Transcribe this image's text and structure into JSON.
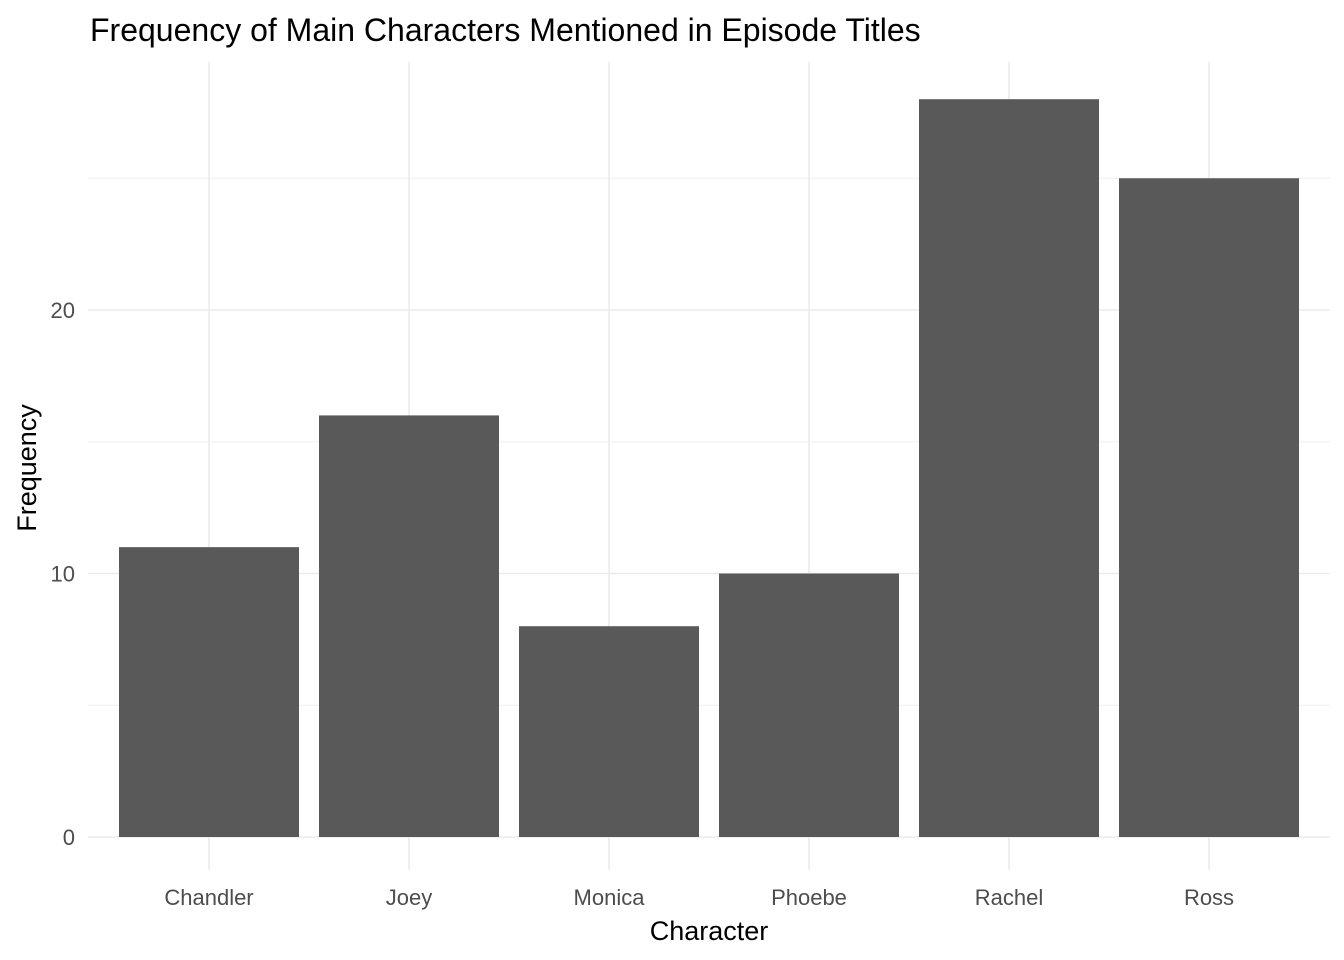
{
  "chart_data": {
    "type": "bar",
    "title": "Frequency of Main Characters Mentioned in Episode Titles",
    "xlabel": "Character",
    "ylabel": "Frequency",
    "categories": [
      "Chandler",
      "Joey",
      "Monica",
      "Phoebe",
      "Rachel",
      "Ross"
    ],
    "values": [
      11,
      16,
      8,
      10,
      28,
      25
    ],
    "ylim": [
      0,
      29.4
    ],
    "yticks": [
      0,
      10,
      20
    ],
    "ytick_labels": [
      "0",
      "10",
      "20"
    ],
    "grid": true,
    "legend": "none",
    "colors": {
      "bar": "#595959",
      "background": "#ffffff",
      "grid": "#ebebeb"
    }
  }
}
